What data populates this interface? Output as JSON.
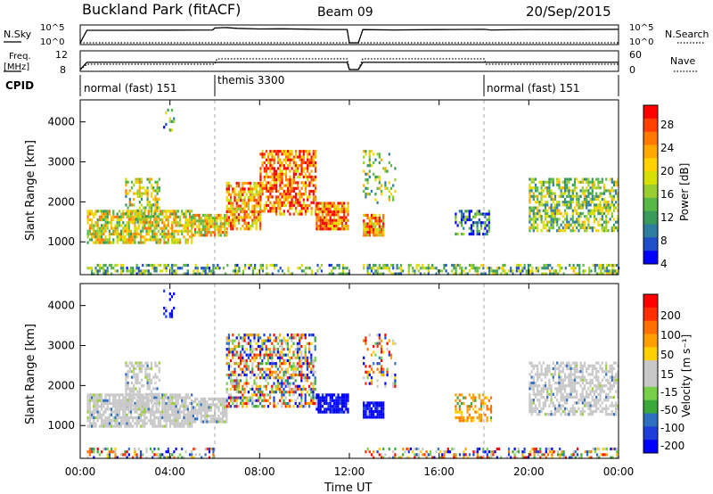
{
  "header": {
    "title": "Buckland Park (fitACF)",
    "beam": "Beam 09",
    "date": "20/Sep/2015"
  },
  "nsky_panel": {
    "left_label": "N.Sky",
    "left_ticks": [
      "10^5",
      "10^0"
    ],
    "right_ticks": [
      "10^5",
      "10^0"
    ],
    "right_label": "N.Search",
    "series": [
      {
        "name": "N.Sky",
        "x": [
          0.0,
          0.3,
          2.0,
          4.0,
          5.9,
          6.0,
          6.5,
          7.0,
          8.0,
          9.0,
          10.0,
          11.0,
          11.9,
          12.0,
          12.4,
          12.6,
          14.0,
          16.0,
          18.0,
          18.3,
          20.0,
          22.0,
          24.0
        ],
        "y": [
          0.0,
          0.78,
          0.78,
          0.79,
          0.8,
          0.92,
          0.95,
          0.9,
          0.86,
          0.87,
          0.85,
          0.83,
          0.83,
          0.0,
          0.0,
          0.82,
          0.8,
          0.82,
          0.84,
          0.8,
          0.83,
          0.82,
          0.84
        ]
      },
      {
        "name": "N.Search",
        "x": [
          0,
          24
        ],
        "y": [
          0,
          0
        ]
      }
    ]
  },
  "freq_panel": {
    "left_label_lines": [
      "Freq.",
      "[MHz]"
    ],
    "left_ticks": [
      "12",
      "8"
    ],
    "right_ticks": [
      "60",
      "0"
    ],
    "right_label": "Nave",
    "freq": {
      "x": [
        0.0,
        0.3,
        11.9,
        12.0,
        12.4,
        12.6,
        24.0
      ],
      "y": [
        8,
        9.8,
        9.8,
        8,
        8,
        9.8,
        9.8
      ]
    },
    "nave": {
      "x": [
        0.0,
        0.3,
        6.0,
        6.1,
        11.9,
        12.0,
        12.4,
        12.6,
        18.0,
        18.1,
        24.0
      ],
      "y": [
        0,
        20,
        20,
        40,
        40,
        0,
        0,
        40,
        40,
        20,
        20
      ]
    }
  },
  "cpid_panel": {
    "label": "CPID",
    "segments": [
      {
        "label": "normal (fast) 151",
        "start": 0,
        "end": 6
      },
      {
        "label": "themis 3300",
        "start": 6,
        "end": 18
      },
      {
        "label": "normal (fast) 151",
        "start": 18,
        "end": 24
      }
    ]
  },
  "chart_data": [
    {
      "type": "heatmap",
      "name": "power",
      "ylabel": "Slant Range [km]",
      "yticks": [
        1000,
        2000,
        3000,
        4000
      ],
      "ylim": [
        180,
        4550
      ],
      "xlim": [
        0,
        24
      ],
      "colorbar": {
        "label": "Power [dB]",
        "ticks": [
          "28",
          "24",
          "20",
          "16",
          "12",
          "8",
          "4"
        ],
        "colors": [
          "#0000ff",
          "#1f4fc8",
          "#2f7d9e",
          "#3a9a5a",
          "#57b845",
          "#9acd32",
          "#d6e000",
          "#ffd200",
          "#ffa800",
          "#ff7800",
          "#ff4000",
          "#ff0000"
        ],
        "range": [
          0,
          31
        ]
      },
      "features": [
        {
          "t0": 0.3,
          "t1": 5.9,
          "r0": 200,
          "r1": 450,
          "level": 0.35,
          "density": 0.55
        },
        {
          "t0": 6.0,
          "t1": 12.0,
          "r0": 200,
          "r1": 450,
          "level": 0.35,
          "density": 0.35
        },
        {
          "t0": 12.6,
          "t1": 24.0,
          "r0": 200,
          "r1": 450,
          "level": 0.4,
          "density": 0.5
        },
        {
          "t0": 0.3,
          "t1": 5.0,
          "r0": 950,
          "r1": 1800,
          "level": 0.55,
          "density": 0.75
        },
        {
          "t0": 2.0,
          "t1": 3.5,
          "r0": 1500,
          "r1": 2600,
          "level": 0.5,
          "density": 0.5
        },
        {
          "t0": 5.0,
          "t1": 6.5,
          "r0": 1150,
          "r1": 1700,
          "level": 0.6,
          "density": 0.8
        },
        {
          "t0": 6.5,
          "t1": 8.0,
          "r0": 1300,
          "r1": 2500,
          "level": 0.7,
          "density": 0.7
        },
        {
          "t0": 8.0,
          "t1": 10.5,
          "r0": 1700,
          "r1": 3300,
          "level": 0.8,
          "density": 0.65
        },
        {
          "t0": 10.5,
          "t1": 11.9,
          "r0": 1300,
          "r1": 2000,
          "level": 0.8,
          "density": 0.9
        },
        {
          "t0": 12.6,
          "t1": 13.5,
          "r0": 1200,
          "r1": 1700,
          "level": 0.7,
          "density": 0.85
        },
        {
          "t0": 12.6,
          "t1": 14.0,
          "r0": 2000,
          "r1": 3300,
          "level": 0.45,
          "density": 0.25
        },
        {
          "t0": 16.7,
          "t1": 18.2,
          "r0": 1200,
          "r1": 1800,
          "level": 0.2,
          "density": 0.45
        },
        {
          "t0": 3.7,
          "t1": 4.2,
          "r0": 3700,
          "r1": 4400,
          "level": 0.3,
          "density": 0.25
        },
        {
          "t0": 20.0,
          "t1": 24.0,
          "r0": 1300,
          "r1": 2600,
          "level": 0.45,
          "density": 0.6
        }
      ]
    },
    {
      "type": "heatmap",
      "name": "velocity",
      "ylabel": "Slant Range [km]",
      "xlabel": "Time UT",
      "xticks": [
        "00:00",
        "04:00",
        "08:00",
        "12:00",
        "16:00",
        "20:00",
        "00:00"
      ],
      "yticks": [
        1000,
        2000,
        3000,
        4000
      ],
      "ylim": [
        180,
        4550
      ],
      "xlim": [
        0,
        24
      ],
      "colorbar": {
        "label": "Velocity [m s⁻¹]",
        "ticks": [
          "200",
          "100",
          "50",
          "15",
          "-15",
          "-50",
          "-100",
          "-200"
        ],
        "colors": [
          "#0000ff",
          "#1d3fd8",
          "#2f6fc0",
          "#3aa83a",
          "#78d048",
          "#c8c8c8",
          "#c8c8c8",
          "#ffd000",
          "#ffa000",
          "#ff7000",
          "#ff3000",
          "#ff0000"
        ],
        "range": [
          -250,
          250
        ]
      },
      "features": [
        {
          "t0": 0.3,
          "t1": 5.9,
          "r0": 200,
          "r1": 450,
          "kind": "mixed",
          "density": 0.4
        },
        {
          "t0": 12.6,
          "t1": 24.0,
          "r0": 200,
          "r1": 450,
          "kind": "mixed",
          "density": 0.4
        },
        {
          "t0": 0.3,
          "t1": 5.0,
          "r0": 950,
          "r1": 1800,
          "kind": "gray",
          "density": 0.8
        },
        {
          "t0": 2.0,
          "t1": 3.5,
          "r0": 1500,
          "r1": 2600,
          "kind": "gray",
          "density": 0.5
        },
        {
          "t0": 5.0,
          "t1": 6.5,
          "r0": 1100,
          "r1": 1700,
          "kind": "gray",
          "density": 0.8
        },
        {
          "t0": 6.5,
          "t1": 10.5,
          "r0": 1500,
          "r1": 3300,
          "kind": "mixed",
          "density": 0.55
        },
        {
          "t0": 10.5,
          "t1": 11.9,
          "r0": 1350,
          "r1": 1800,
          "kind": "blue",
          "density": 0.9
        },
        {
          "t0": 12.6,
          "t1": 13.5,
          "r0": 1200,
          "r1": 1600,
          "kind": "blue",
          "density": 0.9
        },
        {
          "t0": 12.6,
          "t1": 14.0,
          "r0": 2000,
          "r1": 3300,
          "kind": "mixed",
          "density": 0.25
        },
        {
          "t0": 16.7,
          "t1": 18.3,
          "r0": 1150,
          "r1": 1800,
          "kind": "orange",
          "density": 0.5
        },
        {
          "t0": 3.7,
          "t1": 4.2,
          "r0": 3700,
          "r1": 4400,
          "kind": "blue",
          "density": 0.25
        },
        {
          "t0": 20.0,
          "t1": 24.0,
          "r0": 1300,
          "r1": 2600,
          "kind": "gray",
          "density": 0.6
        }
      ]
    }
  ]
}
